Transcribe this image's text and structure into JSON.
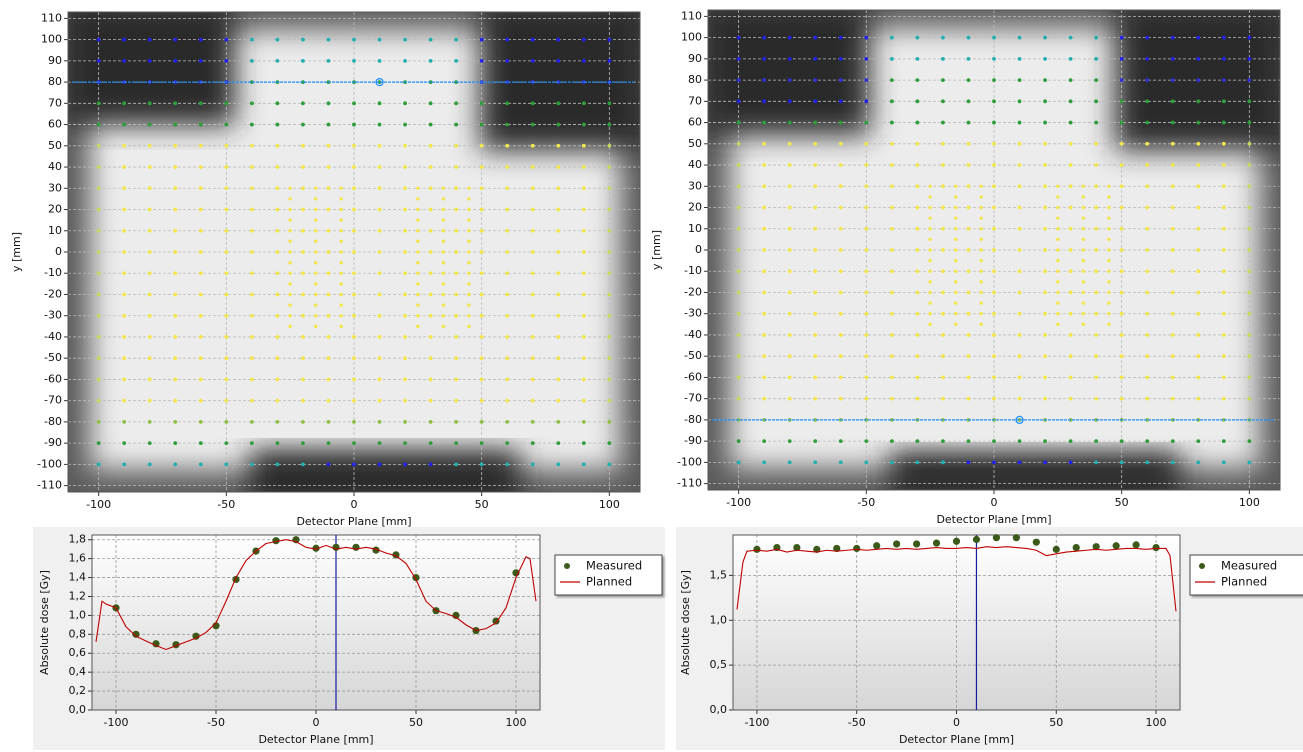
{
  "chart_data": [
    {
      "type": "dose_map",
      "xlabel": "Detector Plane [mm]",
      "ylabel": "y [mm]",
      "xlim": [
        -112,
        112
      ],
      "ylim": [
        -113,
        113
      ],
      "xticks": [
        -100,
        -50,
        0,
        50,
        100
      ],
      "yticks": [
        -110,
        -100,
        -90,
        -80,
        -70,
        -60,
        -50,
        -40,
        -30,
        -20,
        -10,
        0,
        10,
        20,
        30,
        40,
        50,
        60,
        70,
        80,
        90,
        100,
        110
      ],
      "grid": true,
      "profile_y": 80,
      "cursor_x": 10,
      "profile_color": "#1e90ff"
    },
    {
      "type": "dose_map",
      "xlabel": "Detector Plane [mm]",
      "ylabel": "y [mm]",
      "xlim": [
        -112,
        112
      ],
      "ylim": [
        -113,
        113
      ],
      "xticks": [
        -100,
        -50,
        0,
        50,
        100
      ],
      "yticks": [
        -110,
        -100,
        -90,
        -80,
        -70,
        -60,
        -50,
        -40,
        -30,
        -20,
        -10,
        0,
        10,
        20,
        30,
        40,
        50,
        60,
        70,
        80,
        90,
        100,
        110
      ],
      "grid": true,
      "profile_y": -80,
      "cursor_x": 10,
      "profile_color": "#1e90ff"
    },
    {
      "type": "profile",
      "xlabel": "Detector Plane [mm]",
      "ylabel": "Absolute dose [Gy]",
      "xlim": [
        -112,
        112
      ],
      "ylim": [
        0,
        1.85
      ],
      "xticks": [
        -100,
        -50,
        0,
        50,
        100
      ],
      "yticks": [
        {
          "value": 0,
          "label": "0,0"
        },
        {
          "value": 0.2,
          "label": "0,2"
        },
        {
          "value": 0.4,
          "label": "0,4"
        },
        {
          "value": 0.6,
          "label": "0,6"
        },
        {
          "value": 0.8,
          "label": "0,8"
        },
        {
          "value": 1.0,
          "label": "1,0"
        },
        {
          "value": 1.2,
          "label": "1,2"
        },
        {
          "value": 1.4,
          "label": "1,4"
        },
        {
          "value": 1.6,
          "label": "1,6"
        },
        {
          "value": 1.8,
          "label": "1,8"
        }
      ],
      "grid": true,
      "cursor_x": 10,
      "cursor_color": "#1a1aa0",
      "legend": "right",
      "series": [
        {
          "name": "Measured",
          "color": "#3b5a1a",
          "x": [
            -100,
            -90,
            -80,
            -70,
            -60,
            -50,
            -40,
            -30,
            -20,
            -10,
            0,
            10,
            20,
            30,
            40,
            50,
            60,
            70,
            80,
            90,
            100
          ],
          "values": [
            1.08,
            0.8,
            0.7,
            0.69,
            0.78,
            0.89,
            1.38,
            1.68,
            1.79,
            1.8,
            1.71,
            1.72,
            1.72,
            1.69,
            1.64,
            1.4,
            1.05,
            1.0,
            0.84,
            0.94,
            1.45
          ]
        },
        {
          "name": "Planned",
          "color": "#c00000",
          "x": [
            -110,
            -107,
            -105,
            -100,
            -95,
            -90,
            -85,
            -80,
            -75,
            -70,
            -65,
            -60,
            -55,
            -50,
            -45,
            -40,
            -35,
            -30,
            -25,
            -20,
            -15,
            -10,
            -5,
            0,
            5,
            10,
            15,
            20,
            25,
            30,
            35,
            40,
            45,
            50,
            55,
            60,
            65,
            70,
            75,
            80,
            85,
            90,
            95,
            100,
            105,
            107,
            110
          ],
          "values": [
            0.72,
            1.15,
            1.12,
            1.08,
            0.88,
            0.78,
            0.73,
            0.68,
            0.64,
            0.68,
            0.72,
            0.76,
            0.82,
            0.92,
            1.15,
            1.4,
            1.58,
            1.68,
            1.76,
            1.78,
            1.8,
            1.78,
            1.72,
            1.7,
            1.74,
            1.7,
            1.72,
            1.7,
            1.72,
            1.7,
            1.66,
            1.63,
            1.55,
            1.38,
            1.15,
            1.05,
            1.02,
            0.98,
            0.9,
            0.84,
            0.86,
            0.92,
            1.08,
            1.4,
            1.62,
            1.6,
            1.15
          ]
        }
      ]
    },
    {
      "type": "profile",
      "xlabel": "Detector Plane [mm]",
      "ylabel": "Absolute dose [Gy]",
      "xlim": [
        -112,
        112
      ],
      "ylim": [
        0,
        1.95
      ],
      "xticks": [
        -100,
        -50,
        0,
        50,
        100
      ],
      "yticks": [
        {
          "value": 0,
          "label": "0,0"
        },
        {
          "value": 0.5,
          "label": "0,5"
        },
        {
          "value": 1.0,
          "label": "1,0"
        },
        {
          "value": 1.5,
          "label": "1,5"
        }
      ],
      "grid": true,
      "cursor_x": 10,
      "cursor_color": "#1a1aa0",
      "legend": "right",
      "series": [
        {
          "name": "Measured",
          "color": "#3b5a1a",
          "x": [
            -100,
            -90,
            -80,
            -70,
            -60,
            -50,
            -40,
            -30,
            -20,
            -10,
            0,
            10,
            20,
            30,
            40,
            50,
            60,
            70,
            80,
            90,
            100
          ],
          "values": [
            1.79,
            1.81,
            1.81,
            1.79,
            1.8,
            1.8,
            1.83,
            1.85,
            1.85,
            1.86,
            1.88,
            1.9,
            1.92,
            1.92,
            1.87,
            1.79,
            1.81,
            1.82,
            1.83,
            1.84,
            1.81
          ]
        },
        {
          "name": "Planned",
          "color": "#c00000",
          "x": [
            -110,
            -107,
            -105,
            -100,
            -95,
            -90,
            -85,
            -80,
            -75,
            -70,
            -65,
            -60,
            -55,
            -50,
            -45,
            -40,
            -35,
            -30,
            -25,
            -20,
            -15,
            -10,
            -5,
            0,
            5,
            10,
            15,
            20,
            25,
            30,
            35,
            40,
            45,
            50,
            55,
            60,
            65,
            70,
            75,
            80,
            85,
            90,
            95,
            100,
            105,
            107,
            110
          ],
          "values": [
            1.12,
            1.65,
            1.77,
            1.78,
            1.77,
            1.79,
            1.76,
            1.78,
            1.77,
            1.76,
            1.78,
            1.77,
            1.78,
            1.79,
            1.78,
            1.79,
            1.8,
            1.79,
            1.8,
            1.79,
            1.8,
            1.81,
            1.8,
            1.8,
            1.81,
            1.8,
            1.82,
            1.81,
            1.82,
            1.81,
            1.8,
            1.78,
            1.72,
            1.74,
            1.76,
            1.77,
            1.78,
            1.79,
            1.78,
            1.79,
            1.8,
            1.8,
            1.79,
            1.8,
            1.8,
            1.72,
            1.1
          ]
        }
      ]
    }
  ]
}
